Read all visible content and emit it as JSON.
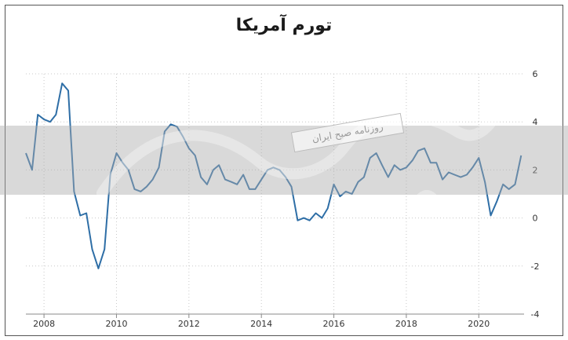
{
  "chart_data": {
    "type": "line",
    "title": "تورم آمریکا",
    "xlabel": "",
    "ylabel": "",
    "xlim": [
      2007.5,
      2021.25
    ],
    "ylim": [
      -4,
      6
    ],
    "x_ticks": [
      "2008",
      "2010",
      "2012",
      "2014",
      "2016",
      "2018",
      "2020"
    ],
    "y_ticks": [
      "6",
      "4",
      "2",
      "0",
      "-2",
      "-4"
    ],
    "grid": true,
    "series": [
      {
        "color": "#2e6ea6",
        "x": [
          2007.5,
          2007.67,
          2007.83,
          2008.0,
          2008.17,
          2008.33,
          2008.5,
          2008.67,
          2008.83,
          2009.0,
          2009.17,
          2009.33,
          2009.5,
          2009.67,
          2009.83,
          2010.0,
          2010.17,
          2010.33,
          2010.5,
          2010.67,
          2010.83,
          2011.0,
          2011.17,
          2011.33,
          2011.5,
          2011.67,
          2011.83,
          2012.0,
          2012.17,
          2012.33,
          2012.5,
          2012.67,
          2012.83,
          2013.0,
          2013.17,
          2013.33,
          2013.5,
          2013.67,
          2013.83,
          2014.0,
          2014.17,
          2014.33,
          2014.5,
          2014.67,
          2014.83,
          2015.0,
          2015.17,
          2015.33,
          2015.5,
          2015.67,
          2015.83,
          2016.0,
          2016.17,
          2016.33,
          2016.5,
          2016.67,
          2016.83,
          2017.0,
          2017.17,
          2017.33,
          2017.5,
          2017.67,
          2017.83,
          2018.0,
          2018.17,
          2018.33,
          2018.5,
          2018.67,
          2018.83,
          2019.0,
          2019.17,
          2019.33,
          2019.5,
          2019.67,
          2019.83,
          2020.0,
          2020.17,
          2020.33,
          2020.5,
          2020.67,
          2020.83,
          2021.0,
          2021.17
        ],
        "values": [
          2.7,
          2.0,
          4.3,
          4.1,
          4.0,
          4.3,
          5.6,
          5.3,
          1.1,
          0.1,
          0.2,
          -1.3,
          -2.1,
          -1.3,
          1.8,
          2.7,
          2.3,
          2.0,
          1.2,
          1.1,
          1.3,
          1.6,
          2.1,
          3.6,
          3.9,
          3.8,
          3.4,
          2.9,
          2.6,
          1.7,
          1.4,
          2.0,
          2.2,
          1.6,
          1.5,
          1.4,
          1.8,
          1.2,
          1.2,
          1.6,
          2.0,
          2.1,
          2.0,
          1.7,
          1.3,
          -0.1,
          0.0,
          -0.1,
          0.2,
          0.0,
          0.4,
          1.4,
          0.9,
          1.1,
          1.0,
          1.5,
          1.7,
          2.5,
          2.7,
          2.2,
          1.7,
          2.2,
          2.0,
          2.1,
          2.4,
          2.8,
          2.9,
          2.3,
          2.3,
          1.6,
          1.9,
          1.8,
          1.7,
          1.8,
          2.1,
          2.5,
          1.5,
          0.1,
          0.7,
          1.4,
          1.2,
          1.4,
          2.6
        ]
      }
    ]
  },
  "watermark": {
    "label": "روزنامه صبح ایران",
    "color": "#aaaaaa"
  }
}
